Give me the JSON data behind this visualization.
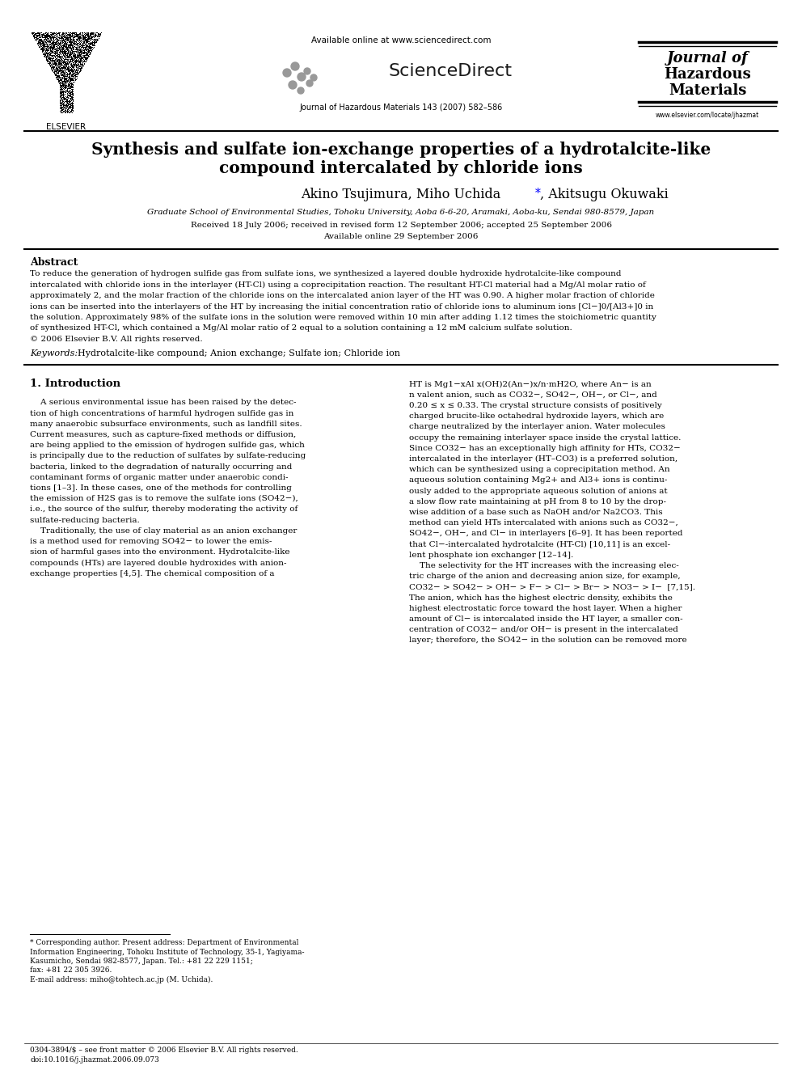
{
  "background_color": "#ffffff",
  "page_width": 9.92,
  "page_height": 13.23,
  "header_available": "Available online at www.sciencedirect.com",
  "header_sciencedirect": "ScienceDirect",
  "header_journal_line": "Journal of Hazardous Materials 143 (2007) 582–586",
  "header_journal_name_line1": "Journal of",
  "header_journal_name_line2": "Hazardous",
  "header_journal_name_line3": "Materials",
  "header_journal_url": "www.elsevier.com/locate/jhazmat",
  "header_elsevier": "ELSEVIER",
  "title_line1": "Synthesis and sulfate ion-exchange properties of a hydrotalcite-like",
  "title_line2": "compound intercalated by chloride ions",
  "author_part1": "Akino Tsujimura, Miho Uchida",
  "author_star": "*",
  "author_part2": ", Akitsugu Okuwaki",
  "affiliation": "Graduate School of Environmental Studies, Tohoku University, Aoba 6-6-20, Aramaki, Aoba-ku, Sendai 980-8579, Japan",
  "received": "Received 18 July 2006; received in revised form 12 September 2006; accepted 25 September 2006",
  "available_online": "Available online 29 September 2006",
  "abstract_title": "Abstract",
  "abstract_lines": [
    "To reduce the generation of hydrogen sulfide gas from sulfate ions, we synthesized a layered double hydroxide hydrotalcite-like compound",
    "intercalated with chloride ions in the interlayer (HT-Cl) using a coprecipitation reaction. The resultant HT-Cl material had a Mg/Al molar ratio of",
    "approximately 2, and the molar fraction of the chloride ions on the intercalated anion layer of the HT was 0.90. A higher molar fraction of chloride",
    "ions can be inserted into the interlayers of the HT by increasing the initial concentration ratio of chloride ions to aluminum ions [Cl−]0/[Al3+]0 in",
    "the solution. Approximately 98% of the sulfate ions in the solution were removed within 10 min after adding 1.12 times the stoichiometric quantity",
    "of synthesized HT-Cl, which contained a Mg/Al molar ratio of 2 equal to a solution containing a 12 mM calcium sulfate solution.",
    "© 2006 Elsevier B.V. All rights reserved."
  ],
  "keywords_label": "Keywords:",
  "keywords_text": "  Hydrotalcite-like compound; Anion exchange; Sulfate ion; Chloride ion",
  "section1_title": "1. Introduction",
  "left_col_lines": [
    "    A serious environmental issue has been raised by the detec-",
    "tion of high concentrations of harmful hydrogen sulfide gas in",
    "many anaerobic subsurface environments, such as landfill sites.",
    "Current measures, such as capture-fixed methods or diffusion,",
    "are being applied to the emission of hydrogen sulfide gas, which",
    "is principally due to the reduction of sulfates by sulfate-reducing",
    "bacteria, linked to the degradation of naturally occurring and",
    "contaminant forms of organic matter under anaerobic condi-",
    "tions [1–3]. In these cases, one of the methods for controlling",
    "the emission of H2S gas is to remove the sulfate ions (SO42−),",
    "i.e., the source of the sulfur, thereby moderating the activity of",
    "sulfate-reducing bacteria.",
    "    Traditionally, the use of clay material as an anion exchanger",
    "is a method used for removing SO42− to lower the emis-",
    "sion of harmful gases into the environment. Hydrotalcite-like",
    "compounds (HTs) are layered double hydroxides with anion-",
    "exchange properties [4,5]. The chemical composition of a"
  ],
  "right_col_lines": [
    "HT is Mg1−xAl x(OH)2(An−)x/n·mH2O, where An− is an",
    "n valent anion, such as CO32−, SO42−, OH−, or Cl−, and",
    "0.20 ≤ x ≤ 0.33. The crystal structure consists of positively",
    "charged brucite-like octahedral hydroxide layers, which are",
    "charge neutralized by the interlayer anion. Water molecules",
    "occupy the remaining interlayer space inside the crystal lattice.",
    "Since CO32− has an exceptionally high affinity for HTs, CO32−",
    "intercalated in the interlayer (HT–CO3) is a preferred solution,",
    "which can be synthesized using a coprecipitation method. An",
    "aqueous solution containing Mg2+ and Al3+ ions is continu-",
    "ously added to the appropriate aqueous solution of anions at",
    "a slow flow rate maintaining at pH from 8 to 10 by the drop-",
    "wise addition of a base such as NaOH and/or Na2CO3. This",
    "method can yield HTs intercalated with anions such as CO32−,",
    "SO42−, OH−, and Cl− in interlayers [6–9]. It has been reported",
    "that Cl−-intercalated hydrotalcite (HT-Cl) [10,11] is an excel-",
    "lent phosphate ion exchanger [12–14].",
    "    The selectivity for the HT increases with the increasing elec-",
    "tric charge of the anion and decreasing anion size, for example,",
    "CO32− > SO42− > OH− > F− > Cl− > Br− > NO3− > I−  [7,15].",
    "The anion, which has the highest electric density, exhibits the",
    "highest electrostatic force toward the host layer. When a higher",
    "amount of Cl− is intercalated inside the HT layer, a smaller con-",
    "centration of CO32− and/or OH− is present in the intercalated",
    "layer; therefore, the SO42− in the solution can be removed more"
  ],
  "footnote_lines": [
    "* Corresponding author. Present address: Department of Environmental",
    "Information Engineering, Tohoku Institute of Technology, 35-1, Yagiyama-",
    "Kasumicho, Sendai 982-8577, Japan. Tel.: +81 22 229 1151;",
    "fax: +81 22 305 3926.",
    "E-mail address: miho@tohtech.ac.jp (M. Uchida)."
  ],
  "bottom_line1": "0304-3894/$ – see front matter © 2006 Elsevier B.V. All rights reserved.",
  "bottom_line2": "doi:10.1016/j.jhazmat.2006.09.073"
}
